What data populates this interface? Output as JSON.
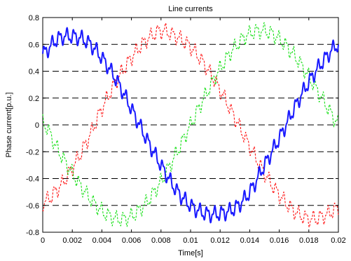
{
  "chart_data": {
    "type": "line",
    "title": "Line currents",
    "xlabel": "Time[s]",
    "ylabel": "Phase current[p.u.]",
    "xlim": [
      0,
      0.02
    ],
    "ylim": [
      -0.8,
      0.8
    ],
    "x_ticks": [
      0,
      0.002,
      0.004,
      0.006,
      0.008,
      0.01,
      0.012,
      0.014,
      0.016,
      0.018,
      0.02
    ],
    "x_tick_labels": [
      "0",
      "0.002",
      "0.004",
      "0.006",
      "0.008",
      "0.01",
      "0.012",
      "0.014",
      "0.016",
      "0.018",
      "0.02"
    ],
    "y_ticks": [
      -0.8,
      -0.6,
      -0.4,
      -0.2,
      0,
      0.2,
      0.4,
      0.6,
      0.8
    ],
    "y_tick_labels": [
      "-0.8",
      "-0.6",
      "-0.4",
      "-0.2",
      "0",
      "0.2",
      "0.4",
      "0.6",
      "0.8"
    ],
    "grid": "horizontal dashed",
    "x": [
      0,
      0.001,
      0.002,
      0.003,
      0.004,
      0.005,
      0.006,
      0.007,
      0.008,
      0.009,
      0.01,
      0.011,
      0.012,
      0.013,
      0.014,
      0.015,
      0.016,
      0.017,
      0.018,
      0.019,
      0.02
    ],
    "series": [
      {
        "color": "#1a1aff",
        "style": "solid",
        "values": [
          0.53,
          0.64,
          0.66,
          0.62,
          0.5,
          0.33,
          0.12,
          -0.1,
          -0.3,
          -0.48,
          -0.6,
          -0.66,
          -0.66,
          -0.62,
          -0.5,
          -0.3,
          -0.1,
          0.12,
          0.32,
          0.48,
          0.6
        ]
      },
      {
        "color": "#ff0000",
        "style": "dashed",
        "values": [
          -0.58,
          -0.48,
          -0.32,
          -0.12,
          0.12,
          0.33,
          0.5,
          0.63,
          0.7,
          0.66,
          0.58,
          0.44,
          0.26,
          0.05,
          -0.16,
          -0.36,
          -0.52,
          -0.64,
          -0.7,
          -0.68,
          -0.62
        ]
      },
      {
        "color": "#00dd00",
        "style": "dashed",
        "values": [
          0.02,
          -0.18,
          -0.36,
          -0.52,
          -0.64,
          -0.7,
          -0.68,
          -0.58,
          -0.42,
          -0.22,
          0.0,
          0.22,
          0.42,
          0.58,
          0.68,
          0.7,
          0.64,
          0.52,
          0.36,
          0.18,
          0.01
        ]
      }
    ]
  }
}
